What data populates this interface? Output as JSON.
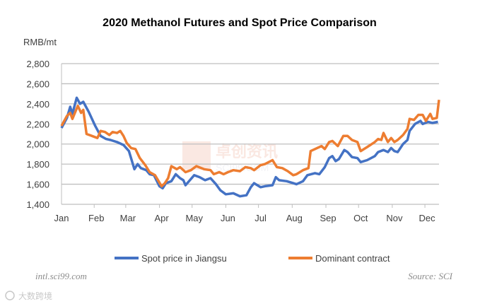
{
  "chart_data": {
    "type": "line",
    "title": "2020 Methanol Futures and Spot Price Comparison",
    "ylabel": "RMB/mt",
    "xlabel": "",
    "x_unit": "day of year 2020",
    "xlim": [
      0,
      347
    ],
    "ylim": [
      1400,
      2800
    ],
    "yticks": [
      1400,
      1600,
      1800,
      2000,
      2200,
      2400,
      2600,
      2800
    ],
    "ytick_labels": [
      "1,400",
      "1,600",
      "1,800",
      "2,000",
      "2,200",
      "2,400",
      "2,600",
      "2,800"
    ],
    "xticks": [
      0,
      32,
      61,
      92,
      122,
      153,
      183,
      214,
      245,
      275,
      306,
      336
    ],
    "xtick_labels": [
      "Jan",
      "Feb",
      "Mar",
      "Apr",
      "May",
      "Jun",
      "Jul",
      "Aug",
      "Sep",
      "Oct",
      "Nov",
      "Dec"
    ],
    "grid": true,
    "legend_position": "bottom",
    "series": [
      {
        "name": "Spot price in Jiangsu",
        "color": "#4472c4",
        "x": [
          0,
          5,
          8,
          10,
          14,
          17,
          20,
          25,
          31,
          36,
          41,
          45,
          51,
          57,
          62,
          67,
          70,
          73,
          78,
          81,
          85,
          90,
          93,
          96,
          101,
          105,
          109,
          112,
          114,
          118,
          122,
          127,
          132,
          137,
          142,
          146,
          151,
          158,
          164,
          170,
          174,
          177,
          183,
          187,
          194,
          197,
          200,
          207,
          213,
          216,
          222,
          226,
          233,
          237,
          242,
          246,
          249,
          252,
          255,
          260,
          263,
          267,
          272,
          275,
          281,
          288,
          291,
          296,
          300,
          303,
          306,
          309,
          314,
          318,
          320,
          325,
          330,
          332,
          337,
          341,
          346
        ],
        "y": [
          2160,
          2260,
          2370,
          2300,
          2460,
          2400,
          2420,
          2320,
          2180,
          2080,
          2050,
          2040,
          2020,
          1990,
          1930,
          1750,
          1800,
          1760,
          1740,
          1700,
          1690,
          1580,
          1560,
          1610,
          1630,
          1700,
          1660,
          1640,
          1590,
          1640,
          1690,
          1670,
          1640,
          1660,
          1600,
          1540,
          1500,
          1510,
          1480,
          1490,
          1570,
          1610,
          1570,
          1580,
          1590,
          1670,
          1640,
          1630,
          1610,
          1600,
          1630,
          1690,
          1710,
          1700,
          1770,
          1860,
          1880,
          1830,
          1850,
          1940,
          1920,
          1870,
          1860,
          1820,
          1840,
          1880,
          1920,
          1940,
          1920,
          1960,
          1930,
          1920,
          2000,
          2040,
          2130,
          2200,
          2230,
          2200,
          2220,
          2210,
          2220
        ]
      },
      {
        "name": "Dominant contract",
        "color": "#ed7d31",
        "x": [
          0,
          5,
          8,
          10,
          15,
          18,
          20,
          23,
          28,
          33,
          36,
          40,
          44,
          47,
          51,
          54,
          57,
          60,
          64,
          68,
          72,
          77,
          81,
          86,
          92,
          95,
          98,
          101,
          106,
          109,
          114,
          119,
          124,
          131,
          137,
          140,
          145,
          149,
          153,
          158,
          164,
          169,
          174,
          177,
          183,
          187,
          194,
          198,
          203,
          208,
          213,
          216,
          222,
          227,
          229,
          235,
          239,
          242,
          246,
          249,
          254,
          259,
          263,
          267,
          272,
          275,
          281,
          288,
          291,
          294,
          296,
          300,
          303,
          306,
          309,
          314,
          318,
          320,
          324,
          328,
          332,
          335,
          339,
          341,
          345,
          347
        ],
        "y": [
          2180,
          2280,
          2310,
          2250,
          2380,
          2310,
          2340,
          2100,
          2080,
          2060,
          2130,
          2120,
          2090,
          2120,
          2110,
          2130,
          2080,
          2010,
          1960,
          1950,
          1860,
          1790,
          1720,
          1690,
          1580,
          1610,
          1660,
          1780,
          1750,
          1770,
          1720,
          1740,
          1780,
          1750,
          1740,
          1700,
          1720,
          1700,
          1720,
          1740,
          1730,
          1770,
          1760,
          1740,
          1790,
          1800,
          1840,
          1770,
          1760,
          1730,
          1690,
          1700,
          1740,
          1760,
          1930,
          1960,
          1980,
          1950,
          2020,
          2030,
          1980,
          2080,
          2080,
          2040,
          2020,
          1930,
          1970,
          2020,
          2050,
          2040,
          2110,
          2020,
          2060,
          2020,
          2040,
          2090,
          2150,
          2250,
          2240,
          2290,
          2290,
          2230,
          2300,
          2250,
          2260,
          2440
        ]
      }
    ]
  },
  "footer": {
    "website": "intl.sci99.com",
    "source": "Source: SCI",
    "watermark_logo": "大数跨境",
    "center_watermark": "卓创资讯 SCI99.COM"
  }
}
